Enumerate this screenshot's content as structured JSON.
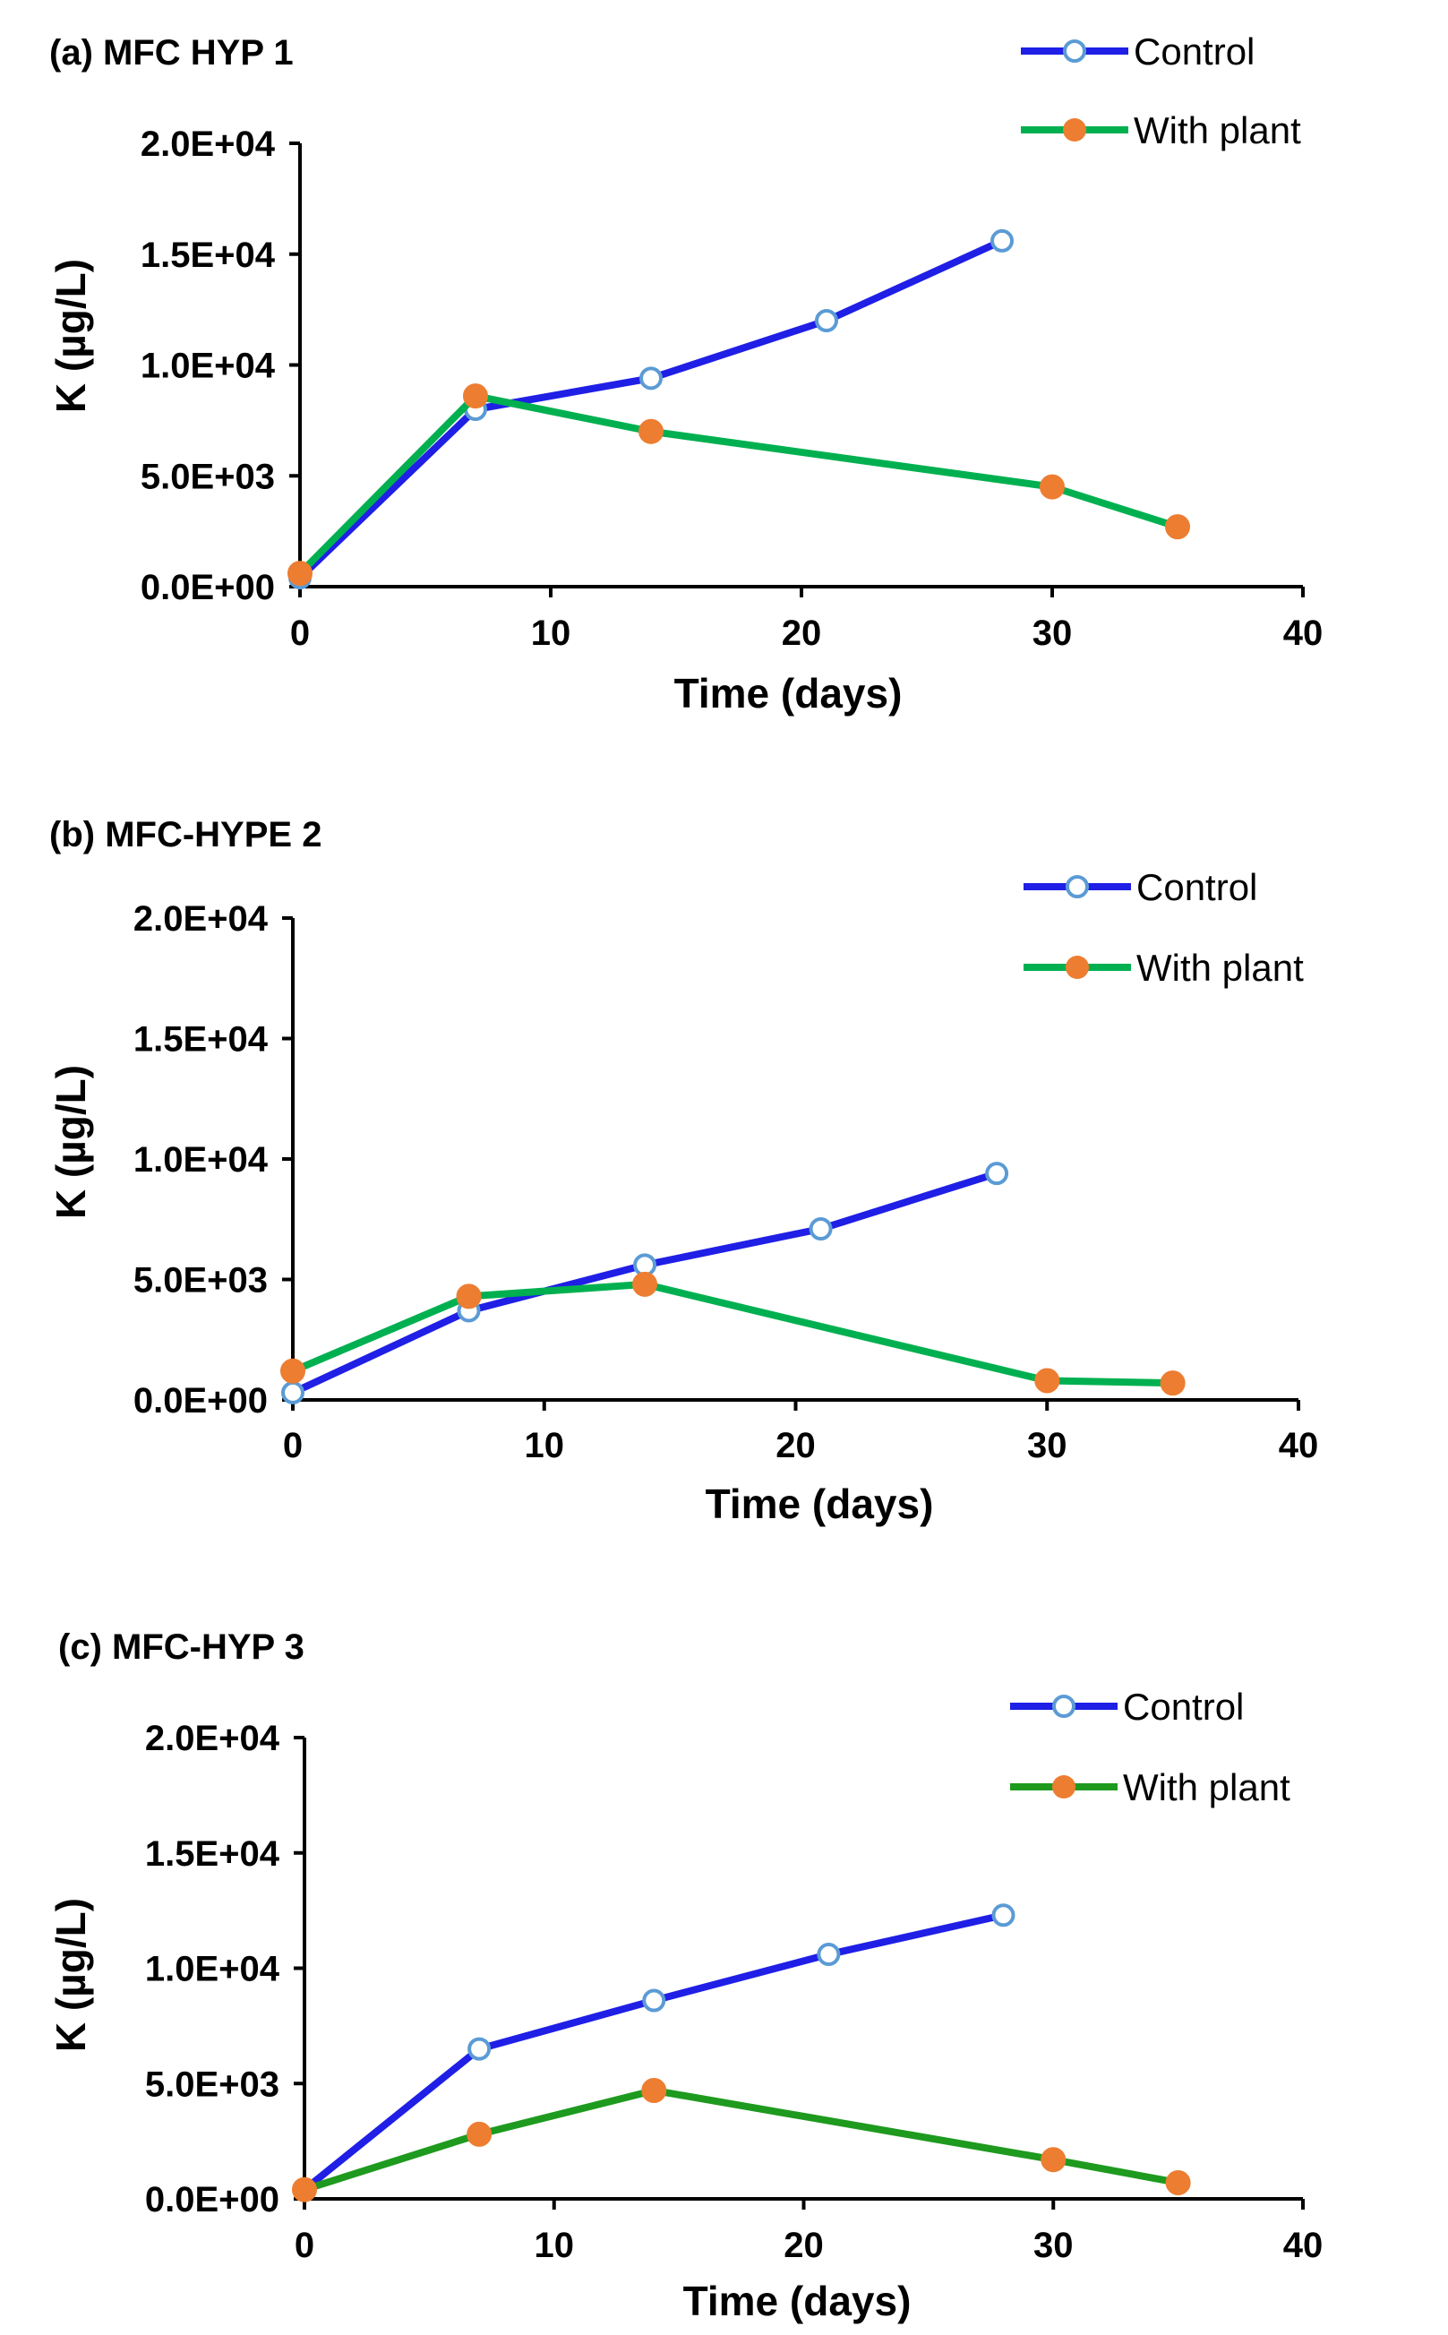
{
  "chart_data": [
    {
      "type": "line",
      "title": "(a) MFC HYP 1",
      "xlabel": "Time (days)",
      "ylabel": "K (µg/L)",
      "xlim": [
        0,
        40
      ],
      "ylim": [
        0,
        20000
      ],
      "x_ticks": [
        0,
        10,
        20,
        30,
        40
      ],
      "x_tick_labels": [
        "0",
        "10",
        "20",
        "30",
        "40"
      ],
      "y_ticks": [
        0,
        5000,
        10000,
        15000,
        20000
      ],
      "y_tick_labels": [
        "0.0E+00",
        "5.0E+03",
        "1.0E+04",
        "1.5E+04",
        "2.0E+04"
      ],
      "legend_position": "top-right",
      "series": [
        {
          "name": "Control",
          "color": "#1f1fe6",
          "marker": "open-circle",
          "x": [
            0,
            7,
            14,
            21,
            28
          ],
          "values": [
            400,
            8000,
            9400,
            12000,
            15600
          ]
        },
        {
          "name": "With plant",
          "color": "#00b050",
          "marker": "filled-circle",
          "x": [
            0,
            7,
            14,
            30,
            35
          ],
          "values": [
            600,
            8600,
            7000,
            4500,
            2700
          ]
        }
      ]
    },
    {
      "type": "line",
      "title": "(b) MFC-HYPE 2",
      "xlabel": "Time (days)",
      "ylabel": "K  (µg/L)",
      "xlim": [
        0,
        40
      ],
      "ylim": [
        0,
        20000
      ],
      "x_ticks": [
        0,
        10,
        20,
        30,
        40
      ],
      "x_tick_labels": [
        "0",
        "10",
        "20",
        "30",
        "40"
      ],
      "y_ticks": [
        0,
        5000,
        10000,
        15000,
        20000
      ],
      "y_tick_labels": [
        "0.0E+00",
        "5.0E+03",
        "1.0E+04",
        "1.5E+04",
        "2.0E+04"
      ],
      "legend_position": "top-right",
      "series": [
        {
          "name": "Control",
          "color": "#1f1fe6",
          "marker": "open-circle",
          "x": [
            0,
            7,
            14,
            21,
            28
          ],
          "values": [
            300,
            3700,
            5600,
            7100,
            9400
          ]
        },
        {
          "name": "With plant",
          "color": "#00b050",
          "marker": "filled-circle",
          "x": [
            0,
            7,
            14,
            30,
            35
          ],
          "values": [
            1200,
            4300,
            4800,
            800,
            700
          ]
        }
      ]
    },
    {
      "type": "line",
      "title": "(c)  MFC-HYP 3",
      "xlabel": "Time (days)",
      "ylabel": "K (µg/L)",
      "xlim": [
        0,
        40
      ],
      "ylim": [
        0,
        20000
      ],
      "x_ticks": [
        0,
        10,
        20,
        30,
        40
      ],
      "x_tick_labels": [
        "0",
        "10",
        "20",
        "30",
        "40"
      ],
      "y_ticks": [
        0,
        5000,
        10000,
        15000,
        20000
      ],
      "y_tick_labels": [
        "0.0E+00",
        "5.0E+03",
        "1.0E+04",
        "1.5E+04",
        "2.0E+04"
      ],
      "legend_position": "top-right",
      "series": [
        {
          "name": "Control",
          "color": "#1f1fe6",
          "marker": "open-circle",
          "x": [
            0,
            7,
            14,
            21,
            28
          ],
          "values": [
            400,
            6500,
            8600,
            10600,
            12300
          ]
        },
        {
          "name": "With plant",
          "color": "#1e9a1e",
          "marker": "filled-circle",
          "x": [
            0,
            7,
            14,
            30,
            35
          ],
          "values": [
            400,
            2800,
            4700,
            1700,
            700
          ]
        }
      ]
    }
  ],
  "marker_fill_color": "#ed7d31"
}
